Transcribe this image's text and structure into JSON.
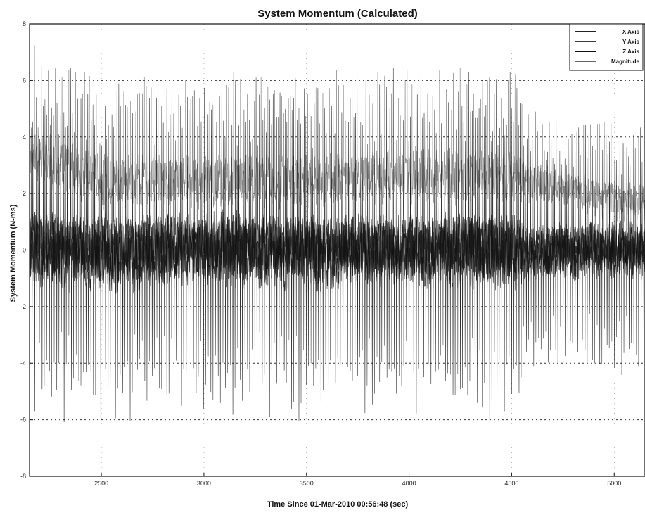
{
  "chart_data": {
    "type": "line",
    "title": "System Momentum (Calculated)",
    "xlabel": "Time Since 01-Mar-2010 00:56:48 (sec)",
    "ylabel": "System Momentum (N-ms)",
    "xlim": [
      2150,
      5150
    ],
    "ylim": [
      -8,
      8
    ],
    "x_ticks": [
      2500,
      3000,
      3500,
      4000,
      4500,
      5000
    ],
    "x_tick_labels": [
      "2500",
      "3000",
      "3500",
      "4000",
      "4500",
      "5000"
    ],
    "y_ticks": [
      -8,
      -6,
      -4,
      -2,
      0,
      2,
      4,
      6,
      8
    ],
    "y_tick_labels": [
      "-8",
      "-6",
      "-4",
      "-2",
      "0",
      "2",
      "4",
      "6",
      "8"
    ],
    "grid": true,
    "legend_position": "top-right",
    "series": [
      {
        "name": "X Axis",
        "color": "#222222",
        "x": [
          2150,
          2500,
          3000,
          3500,
          4000,
          4500,
          5000,
          5150
        ],
        "y": [
          0,
          0.1,
          -0.1,
          0,
          0.1,
          -0.1,
          0,
          0
        ]
      },
      {
        "name": "Y Axis",
        "color": "#3a3a3a",
        "x": [
          2150,
          2500,
          3000,
          3500,
          4000,
          4500,
          5000,
          5150
        ],
        "y": [
          0.5,
          0.2,
          0.3,
          0.2,
          0.1,
          0.2,
          0.1,
          0.1
        ]
      },
      {
        "name": "Z Axis",
        "color": "#111111",
        "x": [
          2150,
          2500,
          3000,
          3500,
          4000,
          4500,
          5000,
          5150
        ],
        "y": [
          0,
          -0.2,
          0.1,
          -0.1,
          0,
          -0.1,
          0,
          0
        ]
      },
      {
        "name": "Magnitude",
        "color": "#666666",
        "x": [
          2150,
          2500,
          3000,
          3500,
          4000,
          4500,
          5000,
          5150
        ],
        "y": [
          3.5,
          2.5,
          2.5,
          2.5,
          2.7,
          2.6,
          1.8,
          1.7
        ]
      }
    ]
  }
}
